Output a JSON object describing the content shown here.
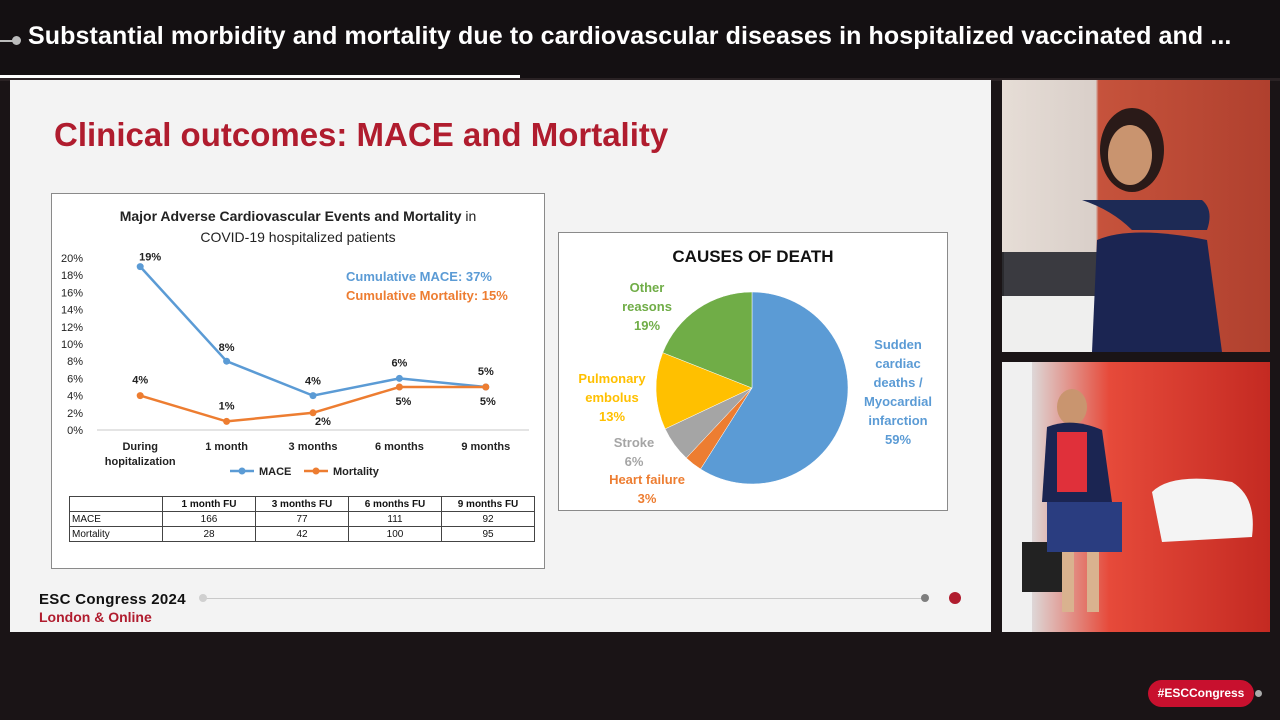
{
  "header": {
    "title": "Substantial morbidity and mortality due to cardiovascular diseases in hospitalized vaccinated and ..."
  },
  "slide": {
    "title": "Clinical outcomes: MACE and Mortality",
    "line_chart": {
      "title_bold": "Major Adverse Cardiovascular Events and Mortality",
      "title_rest": " in",
      "title_line2": "COVID-19 hospitalized patients",
      "annotation_mace": "Cumulative MACE: 37%",
      "annotation_mortality": "Cumulative Mortality: 15%",
      "legend": [
        "MACE",
        "Mortality"
      ]
    },
    "table": {
      "headers": [
        "",
        "1 month FU",
        "3 months FU",
        "6 months FU",
        "9 months FU"
      ],
      "rows": [
        [
          "MACE",
          "166",
          "77",
          "111",
          "92"
        ],
        [
          "Mortality",
          "28",
          "42",
          "100",
          "95"
        ]
      ]
    },
    "pie": {
      "title": "CAUSES OF DEATH",
      "labels": {
        "sudden": [
          "Sudden",
          "cardiac",
          "deaths /",
          "Myocardial",
          "infarction",
          "59%"
        ],
        "other": [
          "Other",
          "reasons",
          "19%"
        ],
        "pulmonary": [
          "Pulmonary",
          "embolus",
          "13%"
        ],
        "stroke": [
          "Stroke",
          "6%"
        ],
        "heart": [
          "Heart failure",
          "3%"
        ]
      }
    },
    "footer": {
      "congress": "ESC Congress 2024",
      "location": "London & Online"
    }
  },
  "hashtag": "#ESCCongress",
  "colors": {
    "title_red": "#b01c2e",
    "mace_blue": "#5b9bd5",
    "mortality_orange": "#ed7d31",
    "other_green": "#70ad47",
    "pulmonary_yellow": "#ffc000",
    "stroke_gray": "#a5a5a5"
  },
  "chart_data": [
    {
      "type": "line",
      "title": "Major Adverse Cardiovascular Events and Mortality in COVID-19 hospitalized patients",
      "categories": [
        "During hopitalization",
        "1 month",
        "3 months",
        "6 months",
        "9 months"
      ],
      "category_lines": [
        [
          "During",
          "hopitalization"
        ],
        [
          "1 month"
        ],
        [
          "3 months"
        ],
        [
          "6 months"
        ],
        [
          "9 months"
        ]
      ],
      "series": [
        {
          "name": "MACE",
          "values": [
            19,
            8,
            4,
            6,
            5
          ],
          "labels": [
            "19%",
            "8%",
            "4%",
            "6%",
            "5%"
          ],
          "color": "#5b9bd5"
        },
        {
          "name": "Mortality",
          "values": [
            4,
            1,
            2,
            5,
            5
          ],
          "labels": [
            "4%",
            "1%",
            "2%",
            "5%",
            "5%"
          ],
          "color": "#ed7d31"
        }
      ],
      "yticks": [
        "0%",
        "2%",
        "4%",
        "6%",
        "8%",
        "10%",
        "12%",
        "14%",
        "16%",
        "18%",
        "20%"
      ],
      "ylim": [
        0,
        20
      ],
      "grid": false,
      "legend": "bottom"
    },
    {
      "type": "pie",
      "title": "CAUSES OF DEATH",
      "slices": [
        {
          "label": "Sudden cardiac deaths / Myocardial infarction",
          "value": 59,
          "color": "#5b9bd5"
        },
        {
          "label": "Heart failure",
          "value": 3,
          "color": "#ed7d31"
        },
        {
          "label": "Stroke",
          "value": 6,
          "color": "#a5a5a5"
        },
        {
          "label": "Pulmonary embolus",
          "value": 13,
          "color": "#ffc000"
        },
        {
          "label": "Other reasons",
          "value": 19,
          "color": "#70ad47"
        }
      ]
    }
  ]
}
